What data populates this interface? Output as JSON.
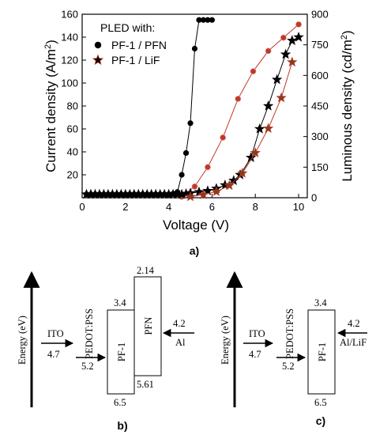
{
  "chart_data": {
    "type": "line",
    "xlabel": "Voltage (V)",
    "ylabel": "Current density (A/m",
    "ylabel_sup": "2",
    "ylabel_end": ")",
    "y2label": "Luminous density (cd/m",
    "y2label_sup": "2",
    "y2label_end": ")",
    "xlim": [
      0,
      10.4
    ],
    "ylim": [
      0,
      160
    ],
    "y2lim": [
      0,
      900
    ],
    "x_ticks": [
      "0",
      "2",
      "4",
      "6",
      "8",
      "10"
    ],
    "y_ticks": [
      "20",
      "40",
      "60",
      "80",
      "100",
      "120",
      "140",
      "160"
    ],
    "y2_ticks": [
      "0",
      "150",
      "300",
      "450",
      "600",
      "750",
      "900"
    ],
    "legend_title": "PLED with:",
    "series": [
      {
        "name": "PF-1 / PFN",
        "axis": "left",
        "marker": "circle",
        "color": "#000000",
        "x": [
          0.2,
          0.4,
          0.6,
          0.8,
          1.0,
          1.2,
          1.4,
          1.6,
          1.8,
          2.0,
          2.2,
          2.4,
          2.6,
          2.8,
          3.0,
          3.2,
          3.4,
          3.6,
          3.8,
          4.0,
          4.2,
          4.4,
          4.6,
          4.8,
          5.0,
          5.2,
          5.4,
          5.6,
          5.8,
          6.0
        ],
        "values": [
          3,
          3,
          3,
          3,
          3,
          3,
          3,
          3,
          3,
          3,
          3,
          3,
          3,
          3,
          3,
          3,
          3,
          3,
          3,
          3,
          3.5,
          5,
          20,
          39,
          65,
          130,
          155,
          155,
          155,
          155
        ]
      },
      {
        "name": "",
        "axis": "right",
        "marker": "circle",
        "color": "#c0392b",
        "x": [
          4.6,
          5.2,
          5.8,
          6.5,
          7.2,
          7.9,
          8.6,
          9.3,
          10.0
        ],
        "values": [
          5,
          55,
          150,
          295,
          485,
          620,
          720,
          785,
          850
        ]
      },
      {
        "name": "PF-1 / LiF",
        "axis": "left",
        "marker": "star",
        "color": "#000000",
        "x": [
          0.2,
          0.4,
          0.6,
          0.8,
          1.0,
          1.2,
          1.4,
          1.6,
          1.8,
          2.0,
          2.2,
          2.4,
          2.6,
          2.8,
          3.0,
          3.2,
          3.4,
          3.6,
          3.8,
          4.0,
          4.2,
          4.4,
          4.6,
          4.8,
          5.0,
          5.4,
          5.8,
          6.2,
          6.6,
          7.0,
          7.3,
          7.8,
          8.2,
          8.6,
          9.0,
          9.4,
          9.7,
          10.0
        ],
        "values": [
          3,
          3,
          3,
          3,
          3,
          3,
          3,
          3,
          3,
          3,
          3,
          3,
          3,
          3,
          3,
          3,
          3,
          3,
          3,
          3,
          3,
          3,
          3,
          3.5,
          4,
          5,
          6,
          8,
          11,
          15,
          20,
          35,
          60,
          80,
          103,
          125,
          137,
          140
        ]
      },
      {
        "name": "",
        "axis": "right",
        "marker": "star",
        "color": "#c0392b",
        "x": [
          5.0,
          5.6,
          6.2,
          6.8,
          7.4,
          8.0,
          8.6,
          9.2,
          9.7
        ],
        "values": [
          5,
          15,
          30,
          60,
          120,
          220,
          340,
          490,
          665
        ]
      }
    ]
  },
  "panel_labels": {
    "a": "a)",
    "b": "b)",
    "c": "c)"
  },
  "diagram_b": {
    "energy_label": "Energy (eV)",
    "ito_label": "ITO",
    "ito_value": "4.7",
    "pedot_label": "PEDOT:PSS",
    "pedot_value": "5.2",
    "pf1_label": "PF-1",
    "pf1_top": "3.4",
    "pf1_bottom": "6.5",
    "pfn_label": "PFN",
    "pfn_top": "2.14",
    "pfn_bottom": "5.61",
    "cathode_value": "4.2",
    "cathode_label": "Al"
  },
  "diagram_c": {
    "energy_label": "Energy (eV)",
    "ito_label": "ITO",
    "ito_value": "4.7",
    "pedot_label": "PEDOT:PSS",
    "pedot_value": "5.2",
    "pf1_label": "PF-1",
    "pf1_top": "3.4",
    "pf1_bottom": "6.5",
    "cathode_value": "4.2",
    "cathode_label": "Al/LiF"
  }
}
